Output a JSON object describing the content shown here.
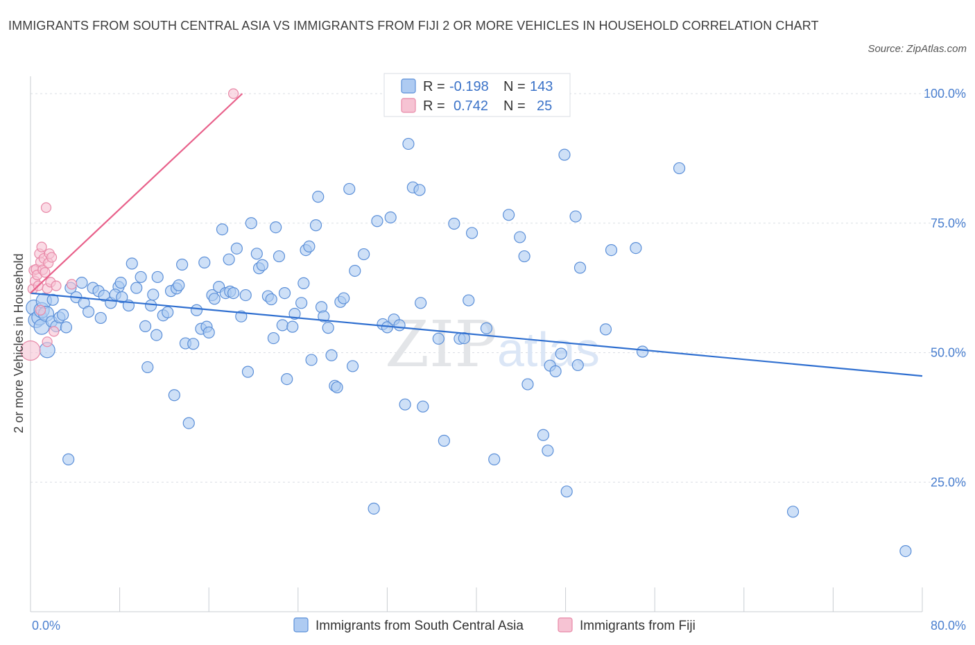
{
  "title": "IMMIGRANTS FROM SOUTH CENTRAL ASIA VS IMMIGRANTS FROM FIJI 2 OR MORE VEHICLES IN HOUSEHOLD CORRELATION CHART",
  "source": "Source: ZipAtlas.com",
  "watermark": {
    "zip": "ZIP",
    "atlas": "atlas"
  },
  "legend": {
    "r_label": "R =",
    "n_label": "N =",
    "series1": {
      "r": "-0.198",
      "n": "143"
    },
    "series2": {
      "r": "0.742",
      "n": "25"
    }
  },
  "colors": {
    "blue_fill": "#aecbf2",
    "blue_stroke": "#5b8fd8",
    "blue_line": "#2f6fd0",
    "pink_fill": "#f6c3d3",
    "pink_stroke": "#e889a8",
    "pink_line": "#e8608a",
    "grid": "#d9dde3",
    "tick_label": "#4a7fcf"
  },
  "chart_data": {
    "type": "scatter",
    "xlabel": "",
    "ylabel": "2 or more Vehicles in Household",
    "xlim": [
      0,
      80
    ],
    "ylim": [
      0,
      100
    ],
    "x_tick_labels": [
      "0.0%",
      "80.0%"
    ],
    "y_ticks": [
      25,
      50,
      75,
      100
    ],
    "y_tick_labels": [
      "25.0%",
      "50.0%",
      "75.0%",
      "100.0%"
    ],
    "grid": true,
    "legend_position": "top-center",
    "series": [
      {
        "name": "Immigrants from South Central Asia",
        "color": "#aecbf2",
        "trend": {
          "x": [
            0,
            80
          ],
          "y": [
            61.5,
            45.5
          ]
        },
        "points": [
          [
            0.3,
            58.7
          ],
          [
            0.5,
            56.3
          ],
          [
            0.8,
            56.8
          ],
          [
            1.0,
            58.2
          ],
          [
            1.2,
            60.0
          ],
          [
            1.0,
            55.0
          ],
          [
            1.4,
            57.5
          ],
          [
            1.5,
            50.5
          ],
          [
            1.9,
            56.0
          ],
          [
            2.0,
            60.2
          ],
          [
            2.3,
            55.1
          ],
          [
            2.6,
            56.8
          ],
          [
            2.9,
            57.3
          ],
          [
            3.2,
            54.9
          ],
          [
            3.6,
            62.5
          ],
          [
            4.1,
            60.7
          ],
          [
            4.6,
            63.5
          ],
          [
            4.8,
            59.6
          ],
          [
            5.2,
            57.9
          ],
          [
            5.6,
            62.5
          ],
          [
            6.1,
            61.9
          ],
          [
            6.6,
            61.0
          ],
          [
            6.3,
            56.7
          ],
          [
            7.2,
            59.6
          ],
          [
            7.9,
            62.7
          ],
          [
            7.6,
            61.2
          ],
          [
            8.1,
            63.5
          ],
          [
            8.8,
            59.1
          ],
          [
            9.1,
            67.2
          ],
          [
            9.5,
            62.5
          ],
          [
            9.9,
            64.6
          ],
          [
            10.3,
            55.1
          ],
          [
            10.8,
            59.1
          ],
          [
            11.0,
            61.2
          ],
          [
            11.3,
            53.4
          ],
          [
            11.4,
            64.6
          ],
          [
            11.9,
            57.2
          ],
          [
            12.3,
            57.8
          ],
          [
            12.6,
            61.9
          ],
          [
            12.9,
            41.8
          ],
          [
            13.1,
            62.4
          ],
          [
            13.3,
            63.0
          ],
          [
            13.6,
            67.0
          ],
          [
            13.9,
            51.8
          ],
          [
            14.2,
            36.4
          ],
          [
            14.6,
            51.7
          ],
          [
            14.9,
            58.2
          ],
          [
            15.3,
            54.6
          ],
          [
            15.6,
            67.4
          ],
          [
            15.8,
            55.0
          ],
          [
            16.0,
            53.9
          ],
          [
            16.3,
            61.1
          ],
          [
            16.5,
            60.4
          ],
          [
            16.9,
            62.7
          ],
          [
            17.2,
            73.8
          ],
          [
            17.5,
            61.5
          ],
          [
            17.8,
            68.0
          ],
          [
            17.9,
            61.8
          ],
          [
            18.2,
            61.5
          ],
          [
            18.5,
            70.1
          ],
          [
            18.9,
            57.0
          ],
          [
            19.3,
            61.1
          ],
          [
            19.5,
            46.3
          ],
          [
            19.8,
            75.0
          ],
          [
            20.3,
            69.1
          ],
          [
            20.5,
            66.3
          ],
          [
            20.8,
            66.9
          ],
          [
            21.3,
            60.9
          ],
          [
            21.6,
            60.3
          ],
          [
            21.8,
            52.8
          ],
          [
            22.0,
            74.2
          ],
          [
            22.3,
            68.6
          ],
          [
            22.6,
            55.3
          ],
          [
            22.8,
            61.5
          ],
          [
            23.0,
            44.9
          ],
          [
            23.5,
            55.0
          ],
          [
            23.7,
            57.5
          ],
          [
            24.3,
            59.6
          ],
          [
            24.5,
            63.4
          ],
          [
            24.7,
            69.8
          ],
          [
            25.0,
            70.5
          ],
          [
            25.2,
            48.6
          ],
          [
            25.6,
            74.6
          ],
          [
            25.8,
            80.1
          ],
          [
            26.1,
            58.8
          ],
          [
            26.3,
            57.0
          ],
          [
            26.7,
            54.8
          ],
          [
            27.0,
            49.5
          ],
          [
            27.3,
            43.6
          ],
          [
            27.5,
            43.3
          ],
          [
            27.8,
            59.8
          ],
          [
            28.1,
            60.5
          ],
          [
            28.6,
            81.6
          ],
          [
            28.9,
            47.4
          ],
          [
            29.1,
            65.8
          ],
          [
            29.9,
            69.0
          ],
          [
            30.8,
            19.9
          ],
          [
            31.1,
            75.4
          ],
          [
            31.6,
            55.5
          ],
          [
            32.0,
            54.9
          ],
          [
            32.3,
            76.1
          ],
          [
            32.6,
            56.4
          ],
          [
            33.1,
            55.3
          ],
          [
            33.6,
            40.0
          ],
          [
            33.9,
            90.3
          ],
          [
            34.3,
            81.9
          ],
          [
            34.9,
            81.4
          ],
          [
            35.0,
            59.6
          ],
          [
            35.2,
            39.6
          ],
          [
            36.6,
            52.7
          ],
          [
            37.1,
            33.0
          ],
          [
            38.0,
            74.9
          ],
          [
            38.5,
            52.7
          ],
          [
            38.9,
            52.8
          ],
          [
            39.3,
            60.1
          ],
          [
            39.6,
            73.1
          ],
          [
            40.9,
            54.7
          ],
          [
            41.6,
            29.4
          ],
          [
            42.9,
            76.6
          ],
          [
            43.9,
            72.3
          ],
          [
            44.3,
            68.6
          ],
          [
            44.6,
            43.9
          ],
          [
            46.0,
            34.1
          ],
          [
            46.4,
            31.1
          ],
          [
            46.6,
            47.5
          ],
          [
            47.1,
            46.4
          ],
          [
            47.6,
            49.8
          ],
          [
            47.9,
            88.2
          ],
          [
            48.1,
            23.2
          ],
          [
            48.9,
            76.3
          ],
          [
            49.1,
            47.6
          ],
          [
            49.3,
            66.4
          ],
          [
            51.6,
            54.5
          ],
          [
            52.1,
            69.8
          ],
          [
            54.3,
            70.2
          ],
          [
            54.9,
            50.2
          ],
          [
            58.2,
            85.6
          ],
          [
            68.4,
            19.3
          ],
          [
            78.5,
            11.7
          ],
          [
            3.4,
            29.4
          ],
          [
            8.2,
            60.7
          ],
          [
            10.5,
            47.2
          ]
        ]
      },
      {
        "name": "Immigrants from Fiji",
        "color": "#f6c3d3",
        "trend": {
          "x": [
            0,
            19
          ],
          "y": [
            61.5,
            100
          ]
        },
        "points": [
          [
            0.0,
            50.4
          ],
          [
            0.2,
            62.3
          ],
          [
            0.3,
            65.9
          ],
          [
            0.4,
            63.8
          ],
          [
            0.5,
            66.1
          ],
          [
            0.6,
            65.0
          ],
          [
            0.7,
            62.9
          ],
          [
            0.8,
            69.1
          ],
          [
            0.9,
            67.5
          ],
          [
            1.0,
            70.4
          ],
          [
            1.1,
            66.0
          ],
          [
            1.2,
            68.2
          ],
          [
            1.3,
            65.5
          ],
          [
            1.4,
            78.0
          ],
          [
            1.5,
            62.4
          ],
          [
            1.6,
            67.3
          ],
          [
            1.7,
            69.1
          ],
          [
            1.8,
            63.6
          ],
          [
            1.9,
            68.4
          ],
          [
            2.1,
            54.1
          ],
          [
            2.3,
            62.9
          ],
          [
            3.7,
            63.2
          ],
          [
            1.5,
            52.1
          ],
          [
            18.2,
            100.0
          ],
          [
            0.9,
            58.2
          ]
        ]
      }
    ]
  },
  "bottom_legend": {
    "series1_label": "Immigrants from South Central Asia",
    "series2_label": "Immigrants from Fiji"
  }
}
